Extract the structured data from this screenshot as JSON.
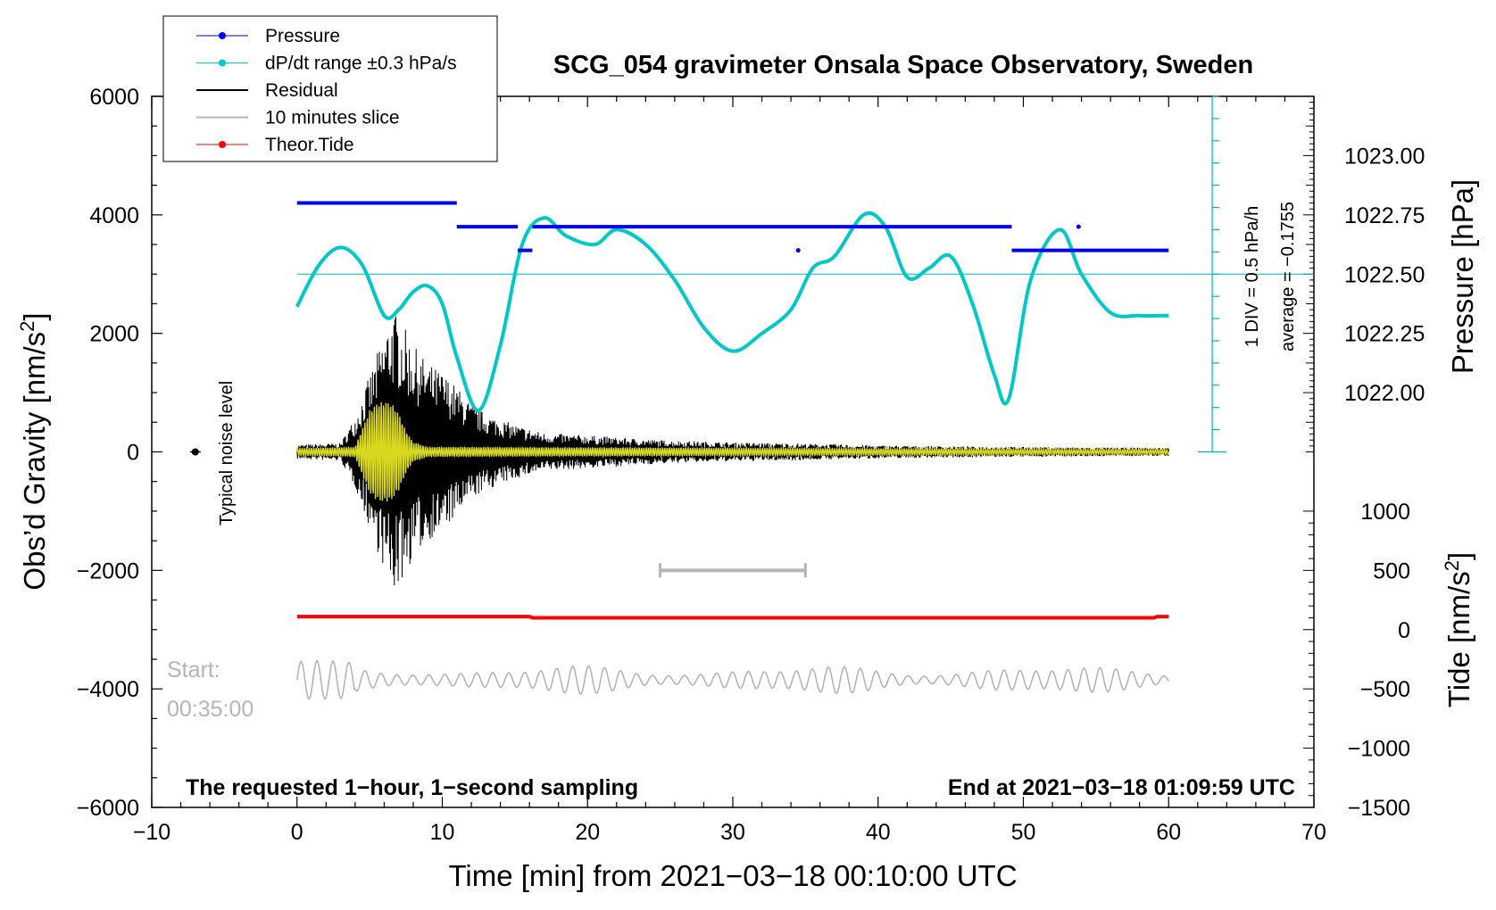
{
  "chart_data": {
    "type": "line",
    "title": "SCG_054 gravimeter Onsala Space Observatory, Sweden",
    "xlabel": "Time [min] from 2021−03−18 00:10:00 UTC",
    "ylabel_left_main": "Obs’d Gravity [nm/s",
    "ylabel_left_sup": "2",
    "ylabel_left_end": "]",
    "ylabel_right_pressure": "Pressure [hPa]",
    "ylabel_right_tide_main": "Tide [nm/s",
    "ylabel_right_tide_sup": "2",
    "ylabel_right_tide_end": "]",
    "xlim": [
      -10,
      70
    ],
    "ylim": [
      -6000,
      6000
    ],
    "x_ticks": [
      -10,
      0,
      10,
      20,
      30,
      40,
      50,
      60,
      70
    ],
    "x_tick_labels": [
      "−10",
      "0",
      "10",
      "20",
      "30",
      "40",
      "50",
      "60",
      "70"
    ],
    "y_ticks": [
      -6000,
      -4000,
      -2000,
      0,
      2000,
      4000,
      6000
    ],
    "y_tick_labels": [
      "−6000",
      "−4000",
      "−2000",
      "0",
      "2000",
      "4000",
      "6000"
    ],
    "pressure_axis": {
      "ticks": [
        1022.0,
        1022.25,
        1022.5,
        1022.75,
        1023.0
      ],
      "tick_labels": [
        "1022.00",
        "1022.25",
        "1022.50",
        "1022.75",
        "1023.00"
      ],
      "gravity_equiv": [
        1000,
        2000,
        3000,
        4000,
        5000
      ]
    },
    "tide_axis": {
      "ticks": [
        -1500,
        -1000,
        -500,
        0,
        500,
        1000
      ],
      "tick_labels": [
        "−1500",
        "−1000",
        "−500",
        "0",
        "500",
        "1000"
      ],
      "gravity_equiv": [
        -6000,
        -5000,
        -4000,
        -3000,
        -2000,
        -1000
      ]
    },
    "dpdt_scale": {
      "label_div": "1 DIV = 0.5 hPa/h",
      "label_avg": "average = −0.1755",
      "x_minute": 63,
      "y_range": [
        0,
        6000
      ],
      "baseline": 3000
    },
    "legend": [
      {
        "label": "Pressure",
        "color": "#0000ee",
        "style": "line-dot"
      },
      {
        "label": "dP/dt range ±0.3 hPa/s",
        "color": "#00c8c8",
        "style": "line-dot"
      },
      {
        "label": "Residual",
        "color": "#000000",
        "style": "line"
      },
      {
        "label": "10 minutes slice",
        "color": "#b5b5b5",
        "style": "line"
      },
      {
        "label": "Theor.Tide",
        "color": "#ff0000",
        "style": "line-dot"
      }
    ],
    "series": [
      {
        "name": "Pressure",
        "color": "#0000ee",
        "segments": [
          {
            "x0": 0,
            "x1": 11,
            "y": 4200
          },
          {
            "x0": 11,
            "x1": 15.2,
            "y": 3800
          },
          {
            "x0": 15.2,
            "x1": 16.2,
            "y": 3400
          },
          {
            "x0": 16.2,
            "x1": 49.2,
            "y": 3800
          },
          {
            "x0": 49.2,
            "x1": 60,
            "y": 3400
          }
        ],
        "dots": [
          {
            "x": 34.5,
            "y": 3400
          },
          {
            "x": 53.8,
            "y": 3800
          }
        ]
      },
      {
        "name": "dP/dt",
        "color": "#00c8c8",
        "x": [
          0,
          1.5,
          3,
          4.5,
          6,
          7,
          8,
          9,
          10,
          11,
          12.5,
          14,
          15.5,
          17,
          18.5,
          20.5,
          22,
          24,
          26,
          28,
          30,
          32,
          34,
          35.5,
          37,
          39,
          40.5,
          42,
          43.5,
          45,
          46.5,
          48,
          49,
          50.5,
          52.5,
          54,
          56,
          58,
          60
        ],
        "values": [
          2450,
          3150,
          3450,
          3150,
          2300,
          2400,
          2700,
          2800,
          2500,
          1600,
          700,
          1800,
          3500,
          3950,
          3650,
          3500,
          3750,
          3500,
          2900,
          2100,
          1700,
          2000,
          2400,
          3100,
          3300,
          4000,
          3800,
          2950,
          3100,
          3300,
          2500,
          1300,
          900,
          2900,
          3750,
          3000,
          2350,
          2300,
          2300
        ]
      },
      {
        "name": "Residual",
        "color": "#000000",
        "x_range": [
          0,
          60
        ],
        "envelope_x": [
          0,
          3,
          4,
          5,
          6,
          6.5,
          7,
          8,
          9,
          10,
          11,
          12,
          13,
          14,
          15,
          17,
          20,
          25,
          30,
          35,
          40,
          45,
          50,
          55,
          60
        ],
        "envelope": [
          120,
          150,
          600,
          1300,
          2000,
          2400,
          2300,
          1800,
          1500,
          1350,
          1100,
          800,
          650,
          550,
          460,
          320,
          280,
          200,
          160,
          140,
          110,
          95,
          85,
          75,
          70
        ]
      },
      {
        "name": "Filtered residual",
        "color": "#d8d820",
        "x_range": [
          0,
          10
        ],
        "envelope_x": [
          0,
          4,
          4.5,
          5,
          5.5,
          6,
          6.5,
          7,
          7.5,
          8,
          9,
          60
        ],
        "envelope": [
          60,
          80,
          400,
          700,
          820,
          850,
          820,
          650,
          350,
          160,
          80,
          40
        ]
      },
      {
        "name": "Theor.Tide",
        "color": "#ff0000",
        "x": [
          0,
          16,
          16.2,
          59,
          59.2,
          60
        ],
        "values": [
          -2780,
          -2780,
          -2800,
          -2800,
          -2780,
          -2780
        ]
      },
      {
        "name": "10 minutes slice",
        "color": "#b5b5b5",
        "x_range": [
          0,
          60
        ],
        "center": -3850,
        "amplitude": 250
      }
    ],
    "slice_bar": {
      "x0": 25,
      "x1": 35,
      "y": -2000,
      "color": "#b5b5b5"
    },
    "noise": {
      "x": -7,
      "y": 0,
      "label": "Typical noise level"
    },
    "start_label": "Start:",
    "start_time": "00:35:00",
    "note_left": "The requested 1−hour, 1−second sampling",
    "note_right": "End at 2021−03−18 01:09:59 UTC"
  }
}
